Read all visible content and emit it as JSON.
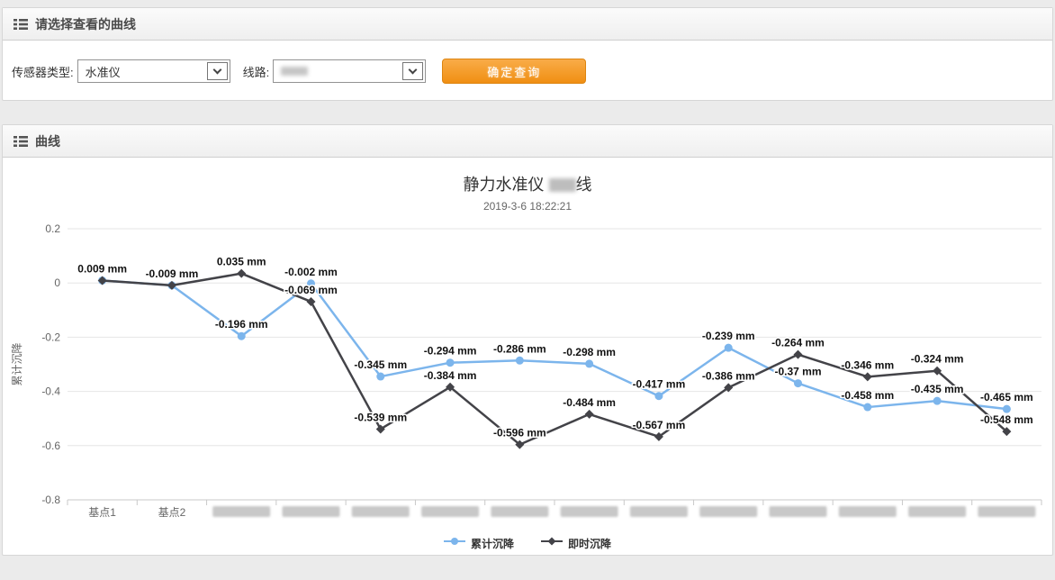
{
  "panel1": {
    "title": "请选择查看的曲线",
    "sensor_label": "传感器类型:",
    "sensor_value": "水准仪",
    "line_label": "线路:",
    "line_value_redacted": true,
    "query_button": "确定查询"
  },
  "panel2": {
    "title": "曲线"
  },
  "chart_data": {
    "type": "line",
    "title_prefix": "静力水准仪 ",
    "title_redacted_segment": true,
    "title_suffix": "线",
    "subtitle": "2019-3-6 18:22:21",
    "ylabel": "累计沉降",
    "unit": "mm",
    "ylim": [
      -0.8,
      0.2
    ],
    "yticks": [
      0.2,
      0,
      -0.2,
      -0.4,
      -0.6,
      -0.8
    ],
    "grid": true,
    "legend_position": "bottom",
    "categories": [
      "基点1",
      "基点2",
      null,
      null,
      null,
      null,
      null,
      null,
      null,
      null,
      null,
      null,
      null,
      null
    ],
    "series": [
      {
        "name": "累计沉降",
        "color": "#7cb5ec",
        "marker": "circle",
        "values": [
          0.009,
          -0.009,
          -0.196,
          -0.002,
          -0.345,
          -0.294,
          -0.286,
          -0.298,
          -0.417,
          -0.239,
          -0.37,
          -0.458,
          -0.435,
          -0.465
        ]
      },
      {
        "name": "即时沉降",
        "color": "#434348",
        "marker": "diamond",
        "values": [
          0.009,
          -0.009,
          0.035,
          -0.069,
          -0.539,
          -0.384,
          -0.596,
          -0.484,
          -0.567,
          -0.386,
          -0.264,
          -0.346,
          -0.324,
          -0.548
        ]
      }
    ]
  }
}
